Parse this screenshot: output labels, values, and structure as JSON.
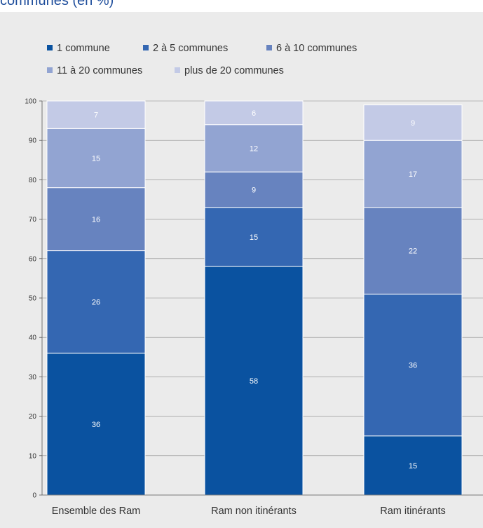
{
  "header": {
    "title": "communes (en %)"
  },
  "chart_data": {
    "type": "bar",
    "stacked": true,
    "categories": [
      "Ensemble des Ram",
      "Ram non itinérants",
      "Ram itinérants"
    ],
    "series": [
      {
        "name": "1 commune",
        "color": "#0a52a0",
        "values": [
          36,
          58,
          15
        ]
      },
      {
        "name": "2 à 5 communes",
        "color": "#3467b2",
        "values": [
          26,
          15,
          36
        ]
      },
      {
        "name": "6 à 10 communes",
        "color": "#6783bf",
        "values": [
          16,
          9,
          22
        ]
      },
      {
        "name": "11 à 20 communes",
        "color": "#92a4d2",
        "values": [
          15,
          12,
          17
        ]
      },
      {
        "name": "plus de 20 communes",
        "color": "#c3cae6",
        "values": [
          7,
          6,
          9
        ]
      }
    ],
    "y_ticks": [
      0,
      10,
      20,
      30,
      40,
      50,
      60,
      70,
      80,
      90,
      100
    ],
    "ylim": [
      0,
      100
    ],
    "grid": true,
    "legend_position": "top"
  }
}
